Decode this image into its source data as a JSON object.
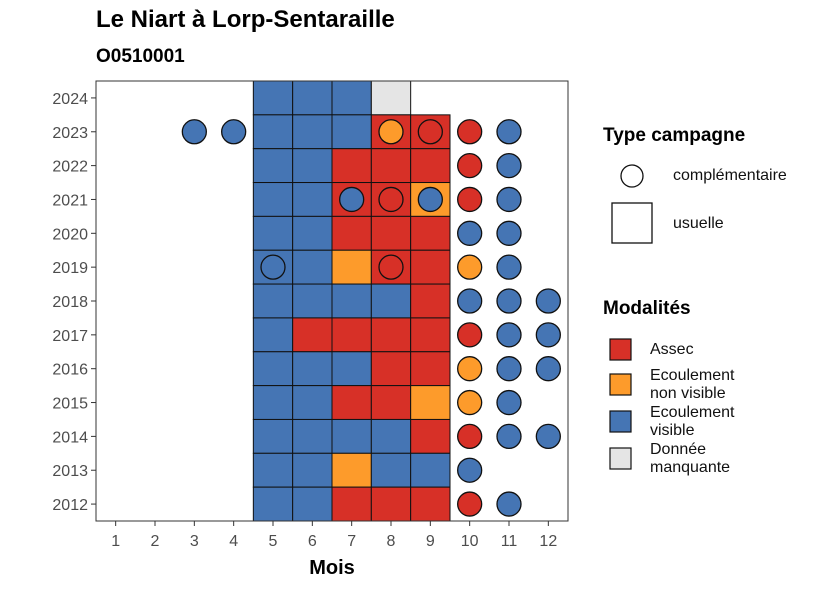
{
  "header": {
    "title": "Le Niart à Lorp-Sentaraille",
    "subtitle": "O0510001"
  },
  "chart_data": {
    "type": "heatmap",
    "xlabel": "Mois",
    "ylabel": "",
    "x_ticks": [
      "1",
      "2",
      "3",
      "4",
      "5",
      "6",
      "7",
      "8",
      "9",
      "10",
      "11",
      "12"
    ],
    "y_ticks": [
      "2012",
      "2013",
      "2014",
      "2015",
      "2016",
      "2017",
      "2018",
      "2019",
      "2020",
      "2021",
      "2022",
      "2023",
      "2024"
    ],
    "xlim": [
      0.5,
      12.5
    ],
    "ylim": [
      2011.5,
      2024.5
    ],
    "grid": false,
    "legend_position": "right",
    "colors": {
      "Assec": "#d73027",
      "Ecoulement non visible": "#fd9b2b",
      "Ecoulement visible": "#4575b4",
      "Donnée manquante": "#e5e5e5"
    },
    "legend": {
      "type_title": "Type campagne",
      "type_items": [
        {
          "key": "complementaire",
          "label": "complémentaire",
          "shape": "circle"
        },
        {
          "key": "usuelle",
          "label": "usuelle",
          "shape": "square"
        }
      ],
      "mod_title": "Modalités",
      "mod_items": [
        {
          "name": "Assec",
          "lines": [
            "Assec"
          ]
        },
        {
          "name": "Ecoulement non visible",
          "lines": [
            "Ecoulement",
            "non visible"
          ]
        },
        {
          "name": "Ecoulement visible",
          "lines": [
            "Ecoulement",
            "visible"
          ]
        },
        {
          "name": "Donnée manquante",
          "lines": [
            "Donnée",
            "manquante"
          ]
        }
      ]
    },
    "usuelle": [
      {
        "year": 2024,
        "values": {
          "5": "Ecoulement visible",
          "6": "Ecoulement visible",
          "7": "Ecoulement visible",
          "8": "Donnée manquante"
        }
      },
      {
        "year": 2023,
        "values": {
          "5": "Ecoulement visible",
          "6": "Ecoulement visible",
          "7": "Ecoulement visible",
          "8": "Assec",
          "9": "Assec"
        }
      },
      {
        "year": 2022,
        "values": {
          "5": "Ecoulement visible",
          "6": "Ecoulement visible",
          "7": "Assec",
          "8": "Assec",
          "9": "Assec"
        }
      },
      {
        "year": 2021,
        "values": {
          "5": "Ecoulement visible",
          "6": "Ecoulement visible",
          "7": "Assec",
          "8": "Assec",
          "9": "Ecoulement non visible"
        }
      },
      {
        "year": 2020,
        "values": {
          "5": "Ecoulement visible",
          "6": "Ecoulement visible",
          "7": "Assec",
          "8": "Assec",
          "9": "Assec"
        }
      },
      {
        "year": 2019,
        "values": {
          "5": "Ecoulement visible",
          "6": "Ecoulement visible",
          "7": "Ecoulement non visible",
          "8": "Assec",
          "9": "Assec"
        }
      },
      {
        "year": 2018,
        "values": {
          "5": "Ecoulement visible",
          "6": "Ecoulement visible",
          "7": "Ecoulement visible",
          "8": "Ecoulement visible",
          "9": "Assec"
        }
      },
      {
        "year": 2017,
        "values": {
          "5": "Ecoulement visible",
          "6": "Assec",
          "7": "Assec",
          "8": "Assec",
          "9": "Assec"
        }
      },
      {
        "year": 2016,
        "values": {
          "5": "Ecoulement visible",
          "6": "Ecoulement visible",
          "7": "Ecoulement visible",
          "8": "Assec",
          "9": "Assec"
        }
      },
      {
        "year": 2015,
        "values": {
          "5": "Ecoulement visible",
          "6": "Ecoulement visible",
          "7": "Assec",
          "8": "Assec",
          "9": "Ecoulement non visible"
        }
      },
      {
        "year": 2014,
        "values": {
          "5": "Ecoulement visible",
          "6": "Ecoulement visible",
          "7": "Ecoulement visible",
          "8": "Ecoulement visible",
          "9": "Assec"
        }
      },
      {
        "year": 2013,
        "values": {
          "5": "Ecoulement visible",
          "6": "Ecoulement visible",
          "7": "Ecoulement non visible",
          "8": "Ecoulement visible",
          "9": "Ecoulement visible"
        }
      },
      {
        "year": 2012,
        "values": {
          "5": "Ecoulement visible",
          "6": "Ecoulement visible",
          "7": "Assec",
          "8": "Assec",
          "9": "Assec"
        }
      }
    ],
    "complementaire": [
      {
        "year": 2023,
        "values": {
          "3": "Ecoulement visible",
          "4": "Ecoulement visible",
          "8": "Ecoulement non visible",
          "9": "Assec",
          "10": "Assec",
          "11": "Ecoulement visible"
        }
      },
      {
        "year": 2022,
        "values": {
          "10": "Assec",
          "11": "Ecoulement visible"
        }
      },
      {
        "year": 2021,
        "values": {
          "7": "Ecoulement visible",
          "8": "Assec",
          "9": "Ecoulement visible",
          "10": "Assec",
          "11": "Ecoulement visible"
        }
      },
      {
        "year": 2020,
        "values": {
          "10": "Ecoulement visible",
          "11": "Ecoulement visible"
        }
      },
      {
        "year": 2019,
        "values": {
          "5": "Ecoulement visible",
          "8": "Assec",
          "10": "Ecoulement non visible",
          "11": "Ecoulement visible"
        }
      },
      {
        "year": 2018,
        "values": {
          "10": "Ecoulement visible",
          "11": "Ecoulement visible",
          "12": "Ecoulement visible"
        }
      },
      {
        "year": 2017,
        "values": {
          "10": "Assec",
          "11": "Ecoulement visible",
          "12": "Ecoulement visible"
        }
      },
      {
        "year": 2016,
        "values": {
          "10": "Ecoulement non visible",
          "11": "Ecoulement visible",
          "12": "Ecoulement visible"
        }
      },
      {
        "year": 2015,
        "values": {
          "10": "Ecoulement non visible",
          "11": "Ecoulement visible"
        }
      },
      {
        "year": 2014,
        "values": {
          "10": "Assec",
          "11": "Ecoulement visible",
          "12": "Ecoulement visible"
        }
      },
      {
        "year": 2013,
        "values": {
          "10": "Ecoulement visible"
        }
      },
      {
        "year": 2012,
        "values": {
          "10": "Assec",
          "11": "Ecoulement visible"
        }
      }
    ]
  }
}
